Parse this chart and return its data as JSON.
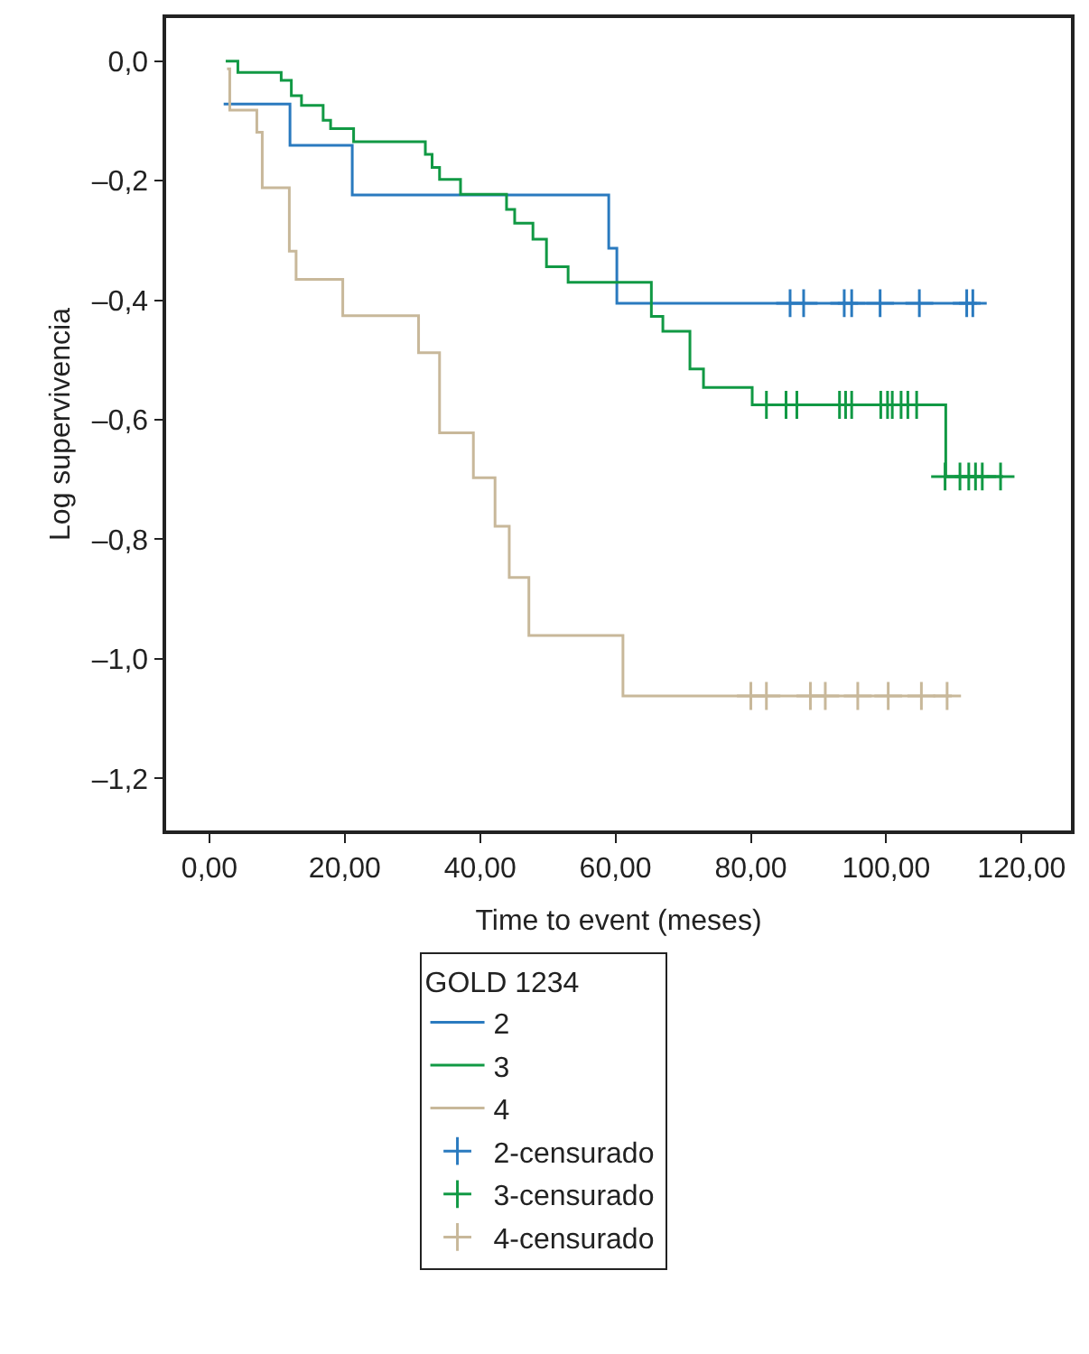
{
  "chart_data": {
    "type": "step",
    "xlabel": "Time to event (meses)",
    "ylabel": "Log supervivencia",
    "legend_title": "GOLD 1234",
    "legend": "bottom",
    "xlim": [
      -6.4,
      127.3
    ],
    "ylim": [
      -1.287,
      0.072
    ],
    "xticks": [
      {
        "value": 0,
        "label": "0,00"
      },
      {
        "value": 20,
        "label": "20,00"
      },
      {
        "value": 40,
        "label": "40,00"
      },
      {
        "value": 60,
        "label": "60,00"
      },
      {
        "value": 80,
        "label": "80,00"
      },
      {
        "value": 100,
        "label": "100,00"
      },
      {
        "value": 120,
        "label": "120,00"
      }
    ],
    "yticks": [
      {
        "value": 0,
        "label": "0,0"
      },
      {
        "value": -0.2,
        "label": "–0,2"
      },
      {
        "value": -0.4,
        "label": "–0,4"
      },
      {
        "value": -0.6,
        "label": "–0,6"
      },
      {
        "value": -0.8,
        "label": "–0,8"
      },
      {
        "value": -1.0,
        "label": "–1,0"
      },
      {
        "value": -1.2,
        "label": "–1,2"
      }
    ],
    "series": [
      {
        "name": "2",
        "color": "#2a7abf",
        "x": [
          2.1,
          11.9,
          21.1,
          59.0,
          60.2,
          113.4
        ],
        "values": [
          -0.072,
          -0.141,
          -0.224,
          -0.313,
          -0.405,
          -0.405
        ]
      },
      {
        "name": "3",
        "color": "#119944",
        "x": [
          2.4,
          4.2,
          10.6,
          12.1,
          13.6,
          16.8,
          17.9,
          21.3,
          31.9,
          32.9,
          34.0,
          37.1,
          43.9,
          45.1,
          47.8,
          49.8,
          53.0,
          65.3,
          67.0,
          71.0,
          73.0,
          80.2,
          108.8,
          117.3
        ],
        "values": [
          0.0,
          -0.019,
          -0.032,
          -0.058,
          -0.074,
          -0.099,
          -0.113,
          -0.135,
          -0.156,
          -0.178,
          -0.198,
          -0.223,
          -0.248,
          -0.271,
          -0.298,
          -0.344,
          -0.37,
          -0.427,
          -0.452,
          -0.515,
          -0.546,
          -0.575,
          -0.695,
          -0.695
        ]
      },
      {
        "name": "4",
        "color": "#c8b89a",
        "x": [
          2.6,
          3.0,
          7.0,
          7.8,
          11.8,
          12.8,
          19.7,
          30.9,
          34.0,
          39.0,
          42.2,
          44.3,
          47.2,
          61.1,
          109.7
        ],
        "values": [
          -0.013,
          -0.082,
          -0.119,
          -0.212,
          -0.318,
          -0.365,
          -0.426,
          -0.488,
          -0.622,
          -0.697,
          -0.778,
          -0.864,
          -0.961,
          -1.062,
          -1.062
        ]
      },
      {
        "name": "2-censurado",
        "type": "scatter",
        "marker": "cross",
        "color": "#2a7abf",
        "x": [
          85.8,
          87.8,
          93.8,
          94.9,
          99.1,
          104.9,
          111.9,
          112.8
        ],
        "values": [
          -0.405,
          -0.405,
          -0.405,
          -0.405,
          -0.405,
          -0.405,
          -0.405,
          -0.405
        ]
      },
      {
        "name": "3-censurado",
        "type": "scatter",
        "marker": "cross",
        "color": "#119944",
        "x": [
          82.3,
          85.2,
          86.8,
          93.1,
          94.0,
          94.9,
          99.2,
          100.2,
          100.9,
          102.2,
          103.2,
          104.5,
          108.7,
          110.9,
          112.2,
          113.2,
          114.2,
          116.9
        ],
        "values": [
          -0.575,
          -0.575,
          -0.575,
          -0.575,
          -0.575,
          -0.575,
          -0.575,
          -0.575,
          -0.575,
          -0.575,
          -0.575,
          -0.575,
          -0.695,
          -0.695,
          -0.695,
          -0.695,
          -0.695,
          -0.695
        ]
      },
      {
        "name": "4-censurado",
        "type": "scatter",
        "marker": "cross",
        "color": "#c8b89a",
        "x": [
          80.0,
          82.3,
          88.8,
          91.0,
          95.8,
          100.3,
          105.2,
          109.0
        ],
        "values": [
          -1.062,
          -1.062,
          -1.062,
          -1.062,
          -1.062,
          -1.062,
          -1.062,
          -1.062
        ]
      }
    ]
  }
}
